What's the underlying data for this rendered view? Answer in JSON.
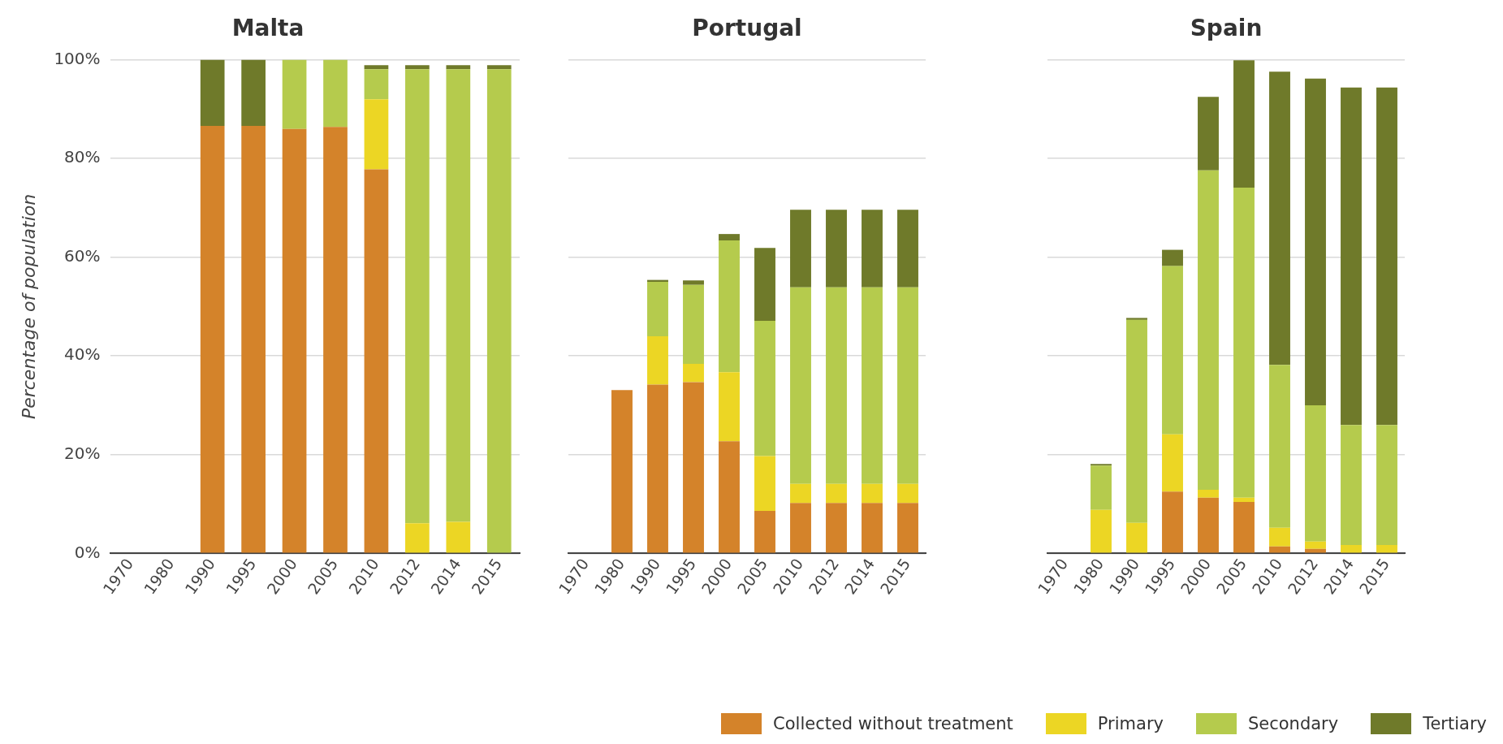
{
  "chart_data": [
    {
      "type": "bar",
      "title": "Malta",
      "ylabel": "Percentage of population",
      "stacked": true,
      "grid": "y",
      "legend": "bottom right",
      "categories": [
        "1970",
        "1980",
        "1990",
        "1995",
        "2000",
        "2005",
        "2010",
        "2012",
        "2014",
        "2015"
      ],
      "ylim": [
        0,
        100
      ],
      "yticks": [
        {
          "value": 0,
          "label": "0%"
        },
        {
          "value": 20,
          "label": "20%"
        },
        {
          "value": 40,
          "label": "40%"
        },
        {
          "value": 60,
          "label": "60%"
        },
        {
          "value": 80,
          "label": "80%"
        },
        {
          "value": 100,
          "label": "100%"
        }
      ],
      "series": [
        {
          "name": "Collected without treatment",
          "color": "#d4832a",
          "values": [
            null,
            null,
            86.6,
            86.6,
            86.0,
            86.4,
            77.8,
            0,
            0,
            0
          ]
        },
        {
          "name": "Primary",
          "color": "#ecd624",
          "values": [
            null,
            null,
            0,
            0,
            0,
            0,
            14.2,
            6.1,
            6.4,
            0
          ]
        },
        {
          "name": "Secondary",
          "color": "#b5cb4d",
          "values": [
            null,
            null,
            0,
            0,
            14.0,
            13.6,
            6.1,
            92.0,
            91.7,
            98.1
          ]
        },
        {
          "name": "Tertiary",
          "color": "#6f7a2a",
          "values": [
            null,
            null,
            13.4,
            13.4,
            0,
            0,
            0.8,
            0.8,
            0.8,
            0.8
          ]
        }
      ]
    },
    {
      "type": "bar",
      "title": "Portugal",
      "stacked": true,
      "grid": "y",
      "tick_labels": "x",
      "categories": [
        "1970",
        "1980",
        "1990",
        "1995",
        "2000",
        "2005",
        "2010",
        "2012",
        "2014",
        "2015"
      ],
      "ylim": [
        0,
        100
      ],
      "yticks": [
        0,
        20,
        40,
        60,
        80,
        100
      ],
      "series": [
        {
          "color": "#d4832a",
          "values": [
            null,
            33.1,
            34.2,
            34.7,
            22.7,
            8.6,
            10.2,
            10.2,
            10.2,
            10.2
          ]
        },
        {
          "color": "#ecd624",
          "values": [
            null,
            0,
            9.8,
            3.7,
            14.0,
            11.1,
            3.9,
            3.9,
            3.9,
            3.9
          ]
        },
        {
          "color": "#b5cb4d",
          "values": [
            null,
            0,
            11.0,
            16.0,
            26.7,
            27.4,
            39.8,
            39.8,
            39.8,
            39.8
          ]
        },
        {
          "color": "#6f7a2a",
          "values": [
            null,
            0,
            0.4,
            0.9,
            1.3,
            14.8,
            15.7,
            15.7,
            15.7,
            15.7
          ]
        }
      ]
    },
    {
      "type": "bar",
      "title": "Spain",
      "stacked": true,
      "grid": "y",
      "tick_labels": "x",
      "categories": [
        "1970",
        "1980",
        "1990",
        "1995",
        "2000",
        "2005",
        "2010",
        "2012",
        "2014",
        "2015"
      ],
      "ylim": [
        0,
        100
      ],
      "yticks": [
        0,
        20,
        40,
        60,
        80,
        100
      ],
      "series": [
        {
          "color": "#d4832a",
          "values": [
            null,
            0,
            0,
            12.5,
            11.3,
            10.4,
            1.4,
            0.9,
            0,
            0
          ]
        },
        {
          "color": "#ecd624",
          "values": [
            null,
            8.8,
            6.2,
            11.6,
            1.6,
            0.9,
            3.8,
            1.5,
            1.7,
            1.7
          ]
        },
        {
          "color": "#b5cb4d",
          "values": [
            null,
            9.0,
            41.1,
            34.1,
            64.7,
            62.8,
            33.0,
            27.6,
            24.3,
            24.3
          ]
        },
        {
          "color": "#6f7a2a",
          "values": [
            null,
            0.3,
            0.4,
            3.3,
            14.9,
            25.8,
            59.4,
            66.2,
            68.4,
            68.4
          ]
        }
      ]
    }
  ]
}
